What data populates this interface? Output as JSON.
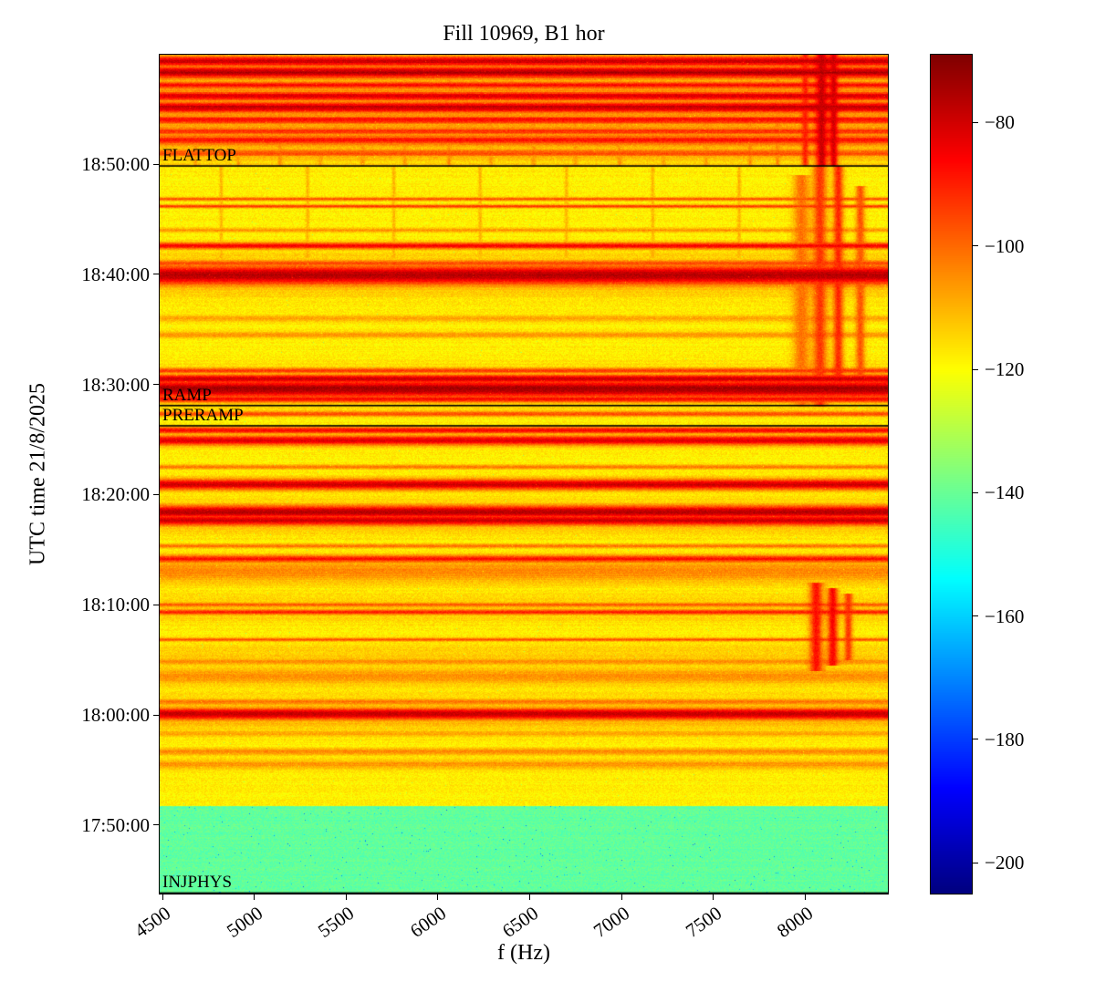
{
  "figure": {
    "background": "#ffffff"
  },
  "chart_data": {
    "type": "heatmap",
    "subtype": "spectrogram",
    "title": "Fill 10969, B1 hor",
    "xlabel": "f (Hz)",
    "ylabel": "UTC time 21/8/2025",
    "colormap": "jet",
    "annotation_line_color": "#000000",
    "x_axis": {
      "min": 4485,
      "max": 8450,
      "ticks": [
        4500,
        5000,
        5500,
        6000,
        6500,
        7000,
        7500,
        8000
      ]
    },
    "y_axis": {
      "top": "18:59:56",
      "bottom": "17:43:47",
      "ticks": [
        "17:50:00",
        "18:00:00",
        "18:10:00",
        "18:20:00",
        "18:30:00",
        "18:40:00",
        "18:50:00"
      ]
    },
    "colorbar": {
      "min": -205,
      "max": -69,
      "ticks": [
        -80,
        -100,
        -120,
        -140,
        -160,
        -180,
        -200
      ]
    },
    "annotations": [
      {
        "label": "FLATTOP",
        "time": "18:49:50"
      },
      {
        "label": "RAMP",
        "time": "18:28:05"
      },
      {
        "label": "PRERAMP",
        "time": "18:26:15"
      },
      {
        "label": "INJPHYS",
        "time": "17:43:50"
      }
    ],
    "background": {
      "injection_level": -141,
      "injection_top": "17:51:45",
      "main_level": -118,
      "flattop_level": -114,
      "flattop_from": "18:49:50",
      "noise_db": 7
    },
    "bands": [
      {
        "time": "17:55:30",
        "hw_min": 0.4,
        "level": -106
      },
      {
        "time": "17:56:40",
        "hw_min": 0.3,
        "level": -104
      },
      {
        "time": "17:58:20",
        "hw_min": 0.3,
        "level": -108
      },
      {
        "time": "18:00:05",
        "hw_min": 0.55,
        "level": -78
      },
      {
        "time": "18:00:05",
        "hw_min": 1.5,
        "level": -108
      },
      {
        "time": "18:01:10",
        "hw_min": 0.3,
        "level": -102
      },
      {
        "time": "18:03:30",
        "hw_min": 0.8,
        "level": -106
      },
      {
        "time": "18:04:50",
        "hw_min": 0.3,
        "level": -104
      },
      {
        "time": "18:05:30",
        "hw_min": 1.0,
        "level": -113
      },
      {
        "time": "18:06:50",
        "hw_min": 0.15,
        "level": -96
      },
      {
        "time": "18:09:20",
        "hw_min": 0.25,
        "level": -90
      },
      {
        "time": "18:09:40",
        "hw_min": 1.2,
        "level": -112
      },
      {
        "time": "18:10:00",
        "hw_min": 0.2,
        "level": -97
      },
      {
        "time": "18:13:00",
        "hw_min": 1.0,
        "level": -104
      },
      {
        "time": "18:14:10",
        "hw_min": 0.35,
        "level": -88
      },
      {
        "time": "18:15:20",
        "hw_min": 0.2,
        "level": -101
      },
      {
        "time": "18:17:40",
        "hw_min": 0.5,
        "level": -80
      },
      {
        "time": "18:18:25",
        "hw_min": 0.6,
        "level": -76
      },
      {
        "time": "18:18:00",
        "hw_min": 1.3,
        "level": -105
      },
      {
        "time": "18:20:55",
        "hw_min": 0.5,
        "level": -80
      },
      {
        "time": "18:22:30",
        "hw_min": 0.2,
        "level": -101
      },
      {
        "time": "18:24:55",
        "hw_min": 0.45,
        "level": -82
      },
      {
        "time": "18:25:50",
        "hw_min": 0.3,
        "level": -86
      },
      {
        "time": "18:27:20",
        "hw_min": 0.25,
        "level": -96
      },
      {
        "time": "18:28:40",
        "hw_min": 0.3,
        "level": -86
      },
      {
        "time": "18:29:35",
        "hw_min": 0.8,
        "level": -74
      },
      {
        "time": "18:29:40",
        "hw_min": 1.6,
        "level": -105
      },
      {
        "time": "18:30:30",
        "hw_min": 0.4,
        "level": -79
      },
      {
        "time": "18:31:15",
        "hw_min": 0.25,
        "level": -92
      },
      {
        "time": "18:34:30",
        "hw_min": 0.3,
        "level": -106
      },
      {
        "time": "18:36:00",
        "hw_min": 0.3,
        "level": -108
      },
      {
        "time": "18:39:55",
        "hw_min": 0.9,
        "level": -76
      },
      {
        "time": "18:39:55",
        "hw_min": 1.8,
        "level": -108
      },
      {
        "time": "18:41:00",
        "hw_min": 0.3,
        "level": -96
      },
      {
        "time": "18:42:35",
        "hw_min": 0.3,
        "level": -85
      },
      {
        "time": "18:44:00",
        "hw_min": 0.2,
        "level": -106
      },
      {
        "time": "18:46:10",
        "hw_min": 0.15,
        "level": -93
      },
      {
        "time": "18:46:50",
        "hw_min": 0.15,
        "level": -96
      },
      {
        "time": "18:51:00",
        "hw_min": 0.3,
        "level": -96
      },
      {
        "time": "18:52:10",
        "hw_min": 0.4,
        "level": -88
      },
      {
        "time": "18:53:00",
        "hw_min": 0.3,
        "level": -91
      },
      {
        "time": "18:54:00",
        "hw_min": 0.35,
        "level": -86
      },
      {
        "time": "18:55:10",
        "hw_min": 0.5,
        "level": -79
      },
      {
        "time": "18:55:30",
        "hw_min": 3.0,
        "level": -104
      },
      {
        "time": "18:56:10",
        "hw_min": 0.4,
        "level": -81
      },
      {
        "time": "18:57:10",
        "hw_min": 0.3,
        "level": -88
      },
      {
        "time": "18:58:20",
        "hw_min": 0.5,
        "level": -76
      },
      {
        "time": "18:59:20",
        "hw_min": 0.45,
        "level": -80
      }
    ],
    "streaks": [
      {
        "f": 8060,
        "hw_hz": 35,
        "level": -88,
        "from": "18:04:00",
        "to": "18:12:00"
      },
      {
        "f": 8150,
        "hw_hz": 28,
        "level": -86,
        "from": "18:04:30",
        "to": "18:11:30"
      },
      {
        "f": 8235,
        "hw_hz": 22,
        "level": -93,
        "from": "18:05:00",
        "to": "18:11:00"
      },
      {
        "f": 7980,
        "hw_hz": 45,
        "level": -101,
        "from": "18:28:00",
        "to": "18:49:00"
      },
      {
        "f": 8080,
        "hw_hz": 38,
        "level": -93,
        "from": "18:28:00",
        "to": "18:49:50"
      },
      {
        "f": 8180,
        "hw_hz": 28,
        "level": -91,
        "from": "18:30:00",
        "to": "18:49:50"
      },
      {
        "f": 8300,
        "hw_hz": 25,
        "level": -97,
        "from": "18:30:00",
        "to": "18:48:00"
      },
      {
        "f": 8000,
        "hw_hz": 18,
        "level": -90,
        "from": "18:49:50",
        "to": "18:59:56"
      },
      {
        "f": 8090,
        "hw_hz": 32,
        "level": -79,
        "from": "18:49:50",
        "to": "18:59:56"
      },
      {
        "f": 8155,
        "hw_hz": 22,
        "level": -81,
        "from": "18:49:50",
        "to": "18:59:56"
      },
      {
        "f": 4680,
        "hw_hz": 12,
        "level": -106,
        "from": "18:49:50",
        "to": "18:59:56"
      },
      {
        "f": 4915,
        "hw_hz": 12,
        "level": -107,
        "from": "18:49:50",
        "to": "18:59:56"
      },
      {
        "f": 5140,
        "hw_hz": 12,
        "level": -105,
        "from": "18:49:50",
        "to": "18:59:56"
      },
      {
        "f": 5360,
        "hw_hz": 12,
        "level": -107,
        "from": "18:49:50",
        "to": "18:59:56"
      },
      {
        "f": 5590,
        "hw_hz": 12,
        "level": -106,
        "from": "18:49:50",
        "to": "18:59:56"
      },
      {
        "f": 5820,
        "hw_hz": 12,
        "level": -106,
        "from": "18:49:50",
        "to": "18:59:56"
      },
      {
        "f": 6060,
        "hw_hz": 12,
        "level": -105,
        "from": "18:49:50",
        "to": "18:59:56"
      },
      {
        "f": 6290,
        "hw_hz": 12,
        "level": -107,
        "from": "18:49:50",
        "to": "18:59:56"
      },
      {
        "f": 6520,
        "hw_hz": 12,
        "level": -106,
        "from": "18:49:50",
        "to": "18:59:56"
      },
      {
        "f": 6750,
        "hw_hz": 12,
        "level": -106,
        "from": "18:49:50",
        "to": "18:59:56"
      },
      {
        "f": 6990,
        "hw_hz": 12,
        "level": -105,
        "from": "18:49:50",
        "to": "18:59:56"
      },
      {
        "f": 7230,
        "hw_hz": 12,
        "level": -107,
        "from": "18:49:50",
        "to": "18:59:56"
      },
      {
        "f": 7460,
        "hw_hz": 12,
        "level": -106,
        "from": "18:49:50",
        "to": "18:59:56"
      },
      {
        "f": 7700,
        "hw_hz": 12,
        "level": -105,
        "from": "18:49:50",
        "to": "18:59:56"
      },
      {
        "f": 7850,
        "hw_hz": 12,
        "level": -104,
        "from": "18:49:50",
        "to": "18:59:56"
      },
      {
        "f": 4820,
        "hw_hz": 10,
        "level": -110,
        "from": "18:41:30",
        "to": "18:49:50"
      },
      {
        "f": 5290,
        "hw_hz": 10,
        "level": -110,
        "from": "18:41:30",
        "to": "18:49:50"
      },
      {
        "f": 5760,
        "hw_hz": 10,
        "level": -110,
        "from": "18:41:30",
        "to": "18:49:50"
      },
      {
        "f": 6230,
        "hw_hz": 10,
        "level": -110,
        "from": "18:41:30",
        "to": "18:49:50"
      },
      {
        "f": 6700,
        "hw_hz": 10,
        "level": -110,
        "from": "18:41:30",
        "to": "18:49:50"
      },
      {
        "f": 7170,
        "hw_hz": 10,
        "level": -110,
        "from": "18:41:30",
        "to": "18:49:50"
      },
      {
        "f": 7640,
        "hw_hz": 10,
        "level": -110,
        "from": "18:41:30",
        "to": "18:49:50"
      }
    ]
  }
}
